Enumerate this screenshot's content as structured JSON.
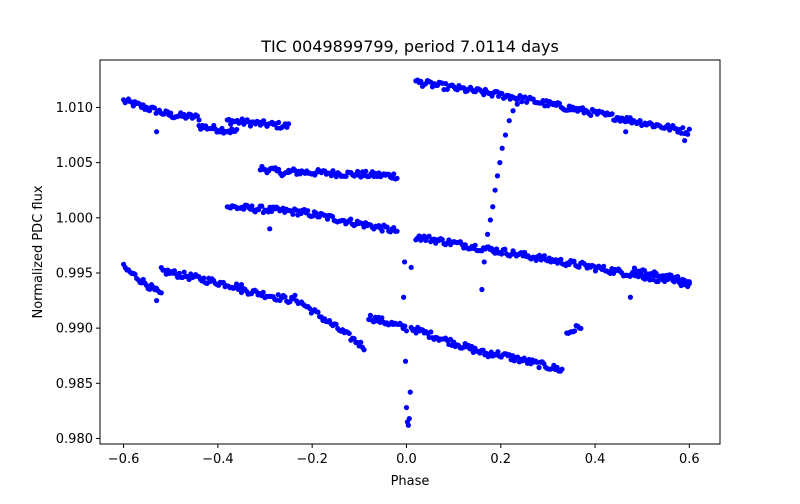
{
  "chart_data": {
    "type": "scatter",
    "title": "TIC 0049899799, period 7.0114 days",
    "xlabel": "Phase",
    "ylabel": "Normalized PDC flux",
    "xlim": [
      -0.65,
      0.665
    ],
    "ylim": [
      0.9795,
      1.0143
    ],
    "xticks": [
      -0.6,
      -0.4,
      -0.2,
      0.0,
      0.2,
      0.4,
      0.6
    ],
    "xtick_labels": [
      "−0.6",
      "−0.4",
      "−0.2",
      "0.0",
      "0.2",
      "0.4",
      "0.6"
    ],
    "yticks": [
      0.98,
      0.985,
      0.99,
      0.995,
      1.0,
      1.005,
      1.01
    ],
    "ytick_labels": [
      "0.980",
      "0.985",
      "0.990",
      "0.995",
      "1.000",
      "1.005",
      "1.010"
    ],
    "grid": false,
    "marker_color": "#0000ff",
    "series": [
      {
        "segments": [
          {
            "x": [
              -0.6,
              -0.5
            ],
            "y": [
              1.0106,
              1.0093
            ]
          },
          {
            "x": [
              -0.5,
              -0.44
            ],
            "y": [
              1.0093,
              1.0091
            ]
          },
          {
            "x": [
              -0.44,
              -0.36
            ],
            "y": [
              1.0083,
              1.0078
            ]
          },
          {
            "x": [
              -0.38,
              -0.25
            ],
            "y": [
              1.0088,
              1.0083
            ]
          },
          {
            "x": [
              -0.31,
              -0.25
            ],
            "y": [
              1.0045,
              1.004
            ]
          },
          {
            "x": [
              -0.25,
              -0.02
            ],
            "y": [
              1.0042,
              1.0038
            ]
          },
          {
            "x": [
              -0.38,
              -0.22
            ],
            "y": [
              1.001,
              1.0005
            ]
          },
          {
            "x": [
              -0.22,
              -0.02
            ],
            "y": [
              1.0005,
              0.9988
            ]
          },
          {
            "x": [
              -0.6,
              -0.52
            ],
            "y": [
              0.9955,
              0.993
            ]
          },
          {
            "x": [
              -0.52,
              -0.35
            ],
            "y": [
              0.9952,
              0.9937
            ]
          },
          {
            "x": [
              -0.35,
              -0.24
            ],
            "y": [
              0.9935,
              0.9925
            ]
          },
          {
            "x": [
              -0.24,
              -0.09
            ],
            "y": [
              0.9928,
              0.9883
            ]
          },
          {
            "x": [
              -0.08,
              0.0
            ],
            "y": [
              0.991,
              0.99
            ]
          },
          {
            "x": [
              0.01,
              0.18
            ],
            "y": [
              0.99,
              0.9875
            ]
          },
          {
            "x": [
              0.18,
              0.33
            ],
            "y": [
              0.9878,
              0.9862
            ]
          },
          {
            "x": [
              0.34,
              0.37
            ],
            "y": [
              0.9895,
              0.9902
            ]
          },
          {
            "x": [
              0.02,
              0.22
            ],
            "y": [
              1.0123,
              1.011
            ]
          },
          {
            "x": [
              0.22,
              0.6
            ],
            "y": [
              1.011,
              1.0078
            ]
          },
          {
            "x": [
              0.02,
              0.6
            ],
            "y": [
              0.9983,
              0.994
            ]
          },
          {
            "x": [
              0.48,
              0.6
            ],
            "y": [
              0.9952,
              0.9942
            ]
          }
        ],
        "transit_points": [
          {
            "x": -0.006,
            "y": 0.9928
          },
          {
            "x": -0.004,
            "y": 0.996
          },
          {
            "x": -0.002,
            "y": 0.987
          },
          {
            "x": 0.0,
            "y": 0.9828
          },
          {
            "x": 0.002,
            "y": 0.9815
          },
          {
            "x": 0.004,
            "y": 0.9812
          },
          {
            "x": 0.006,
            "y": 0.9818
          },
          {
            "x": 0.008,
            "y": 0.9842
          },
          {
            "x": 0.01,
            "y": 0.9955
          },
          {
            "x": 0.16,
            "y": 0.9935
          },
          {
            "x": 0.165,
            "y": 0.996
          },
          {
            "x": 0.172,
            "y": 0.9985
          },
          {
            "x": 0.178,
            "y": 0.9998
          },
          {
            "x": 0.183,
            "y": 1.001
          },
          {
            "x": 0.188,
            "y": 1.0025
          },
          {
            "x": 0.193,
            "y": 1.0038
          },
          {
            "x": 0.198,
            "y": 1.005
          },
          {
            "x": 0.203,
            "y": 1.0063
          },
          {
            "x": 0.21,
            "y": 1.0075
          },
          {
            "x": 0.218,
            "y": 1.0088
          },
          {
            "x": 0.226,
            "y": 1.0097
          },
          {
            "x": 0.235,
            "y": 1.0103
          },
          {
            "x": -0.53,
            "y": 0.9925
          },
          {
            "x": -0.53,
            "y": 1.0078
          },
          {
            "x": -0.29,
            "y": 0.999
          },
          {
            "x": 0.465,
            "y": 1.0078
          },
          {
            "x": 0.475,
            "y": 0.9928
          },
          {
            "x": 0.59,
            "y": 1.007
          }
        ]
      }
    ]
  }
}
